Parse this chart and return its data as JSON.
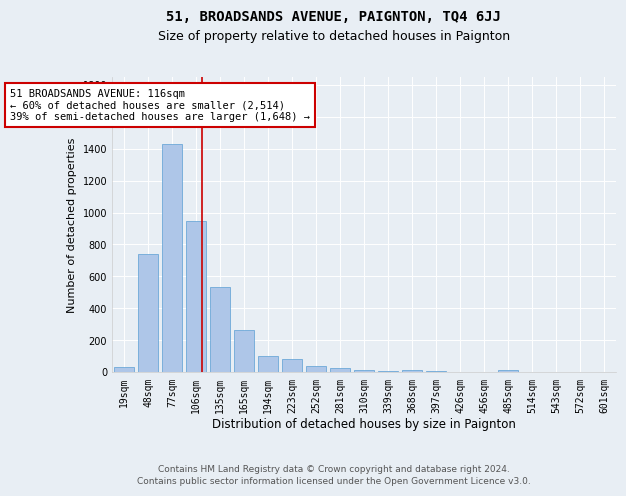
{
  "title1": "51, BROADSANDS AVENUE, PAIGNTON, TQ4 6JJ",
  "title2": "Size of property relative to detached houses in Paignton",
  "xlabel": "Distribution of detached houses by size in Paignton",
  "ylabel": "Number of detached properties",
  "categories": [
    "19sqm",
    "48sqm",
    "77sqm",
    "106sqm",
    "135sqm",
    "165sqm",
    "194sqm",
    "223sqm",
    "252sqm",
    "281sqm",
    "310sqm",
    "339sqm",
    "368sqm",
    "397sqm",
    "426sqm",
    "456sqm",
    "485sqm",
    "514sqm",
    "543sqm",
    "572sqm",
    "601sqm"
  ],
  "values": [
    30,
    740,
    1430,
    950,
    530,
    265,
    100,
    82,
    35,
    25,
    15,
    5,
    10,
    5,
    2,
    2,
    10,
    2,
    2,
    2,
    2
  ],
  "bar_color": "#aec6e8",
  "bar_edge_color": "#5a9fd4",
  "vline_x_index": 3.25,
  "vline_color": "#cc0000",
  "annotation_lines": [
    "51 BROADSANDS AVENUE: 116sqm",
    "← 60% of detached houses are smaller (2,514)",
    "39% of semi-detached houses are larger (1,648) →"
  ],
  "ylim": [
    0,
    1850
  ],
  "yticks": [
    0,
    200,
    400,
    600,
    800,
    1000,
    1200,
    1400,
    1600,
    1800
  ],
  "background_color": "#e8eef4",
  "footer1": "Contains HM Land Registry data © Crown copyright and database right 2024.",
  "footer2": "Contains public sector information licensed under the Open Government Licence v3.0.",
  "title1_fontsize": 10,
  "title2_fontsize": 9,
  "xlabel_fontsize": 8.5,
  "ylabel_fontsize": 8,
  "tick_fontsize": 7,
  "annotation_fontsize": 7.5,
  "footer_fontsize": 6.5
}
